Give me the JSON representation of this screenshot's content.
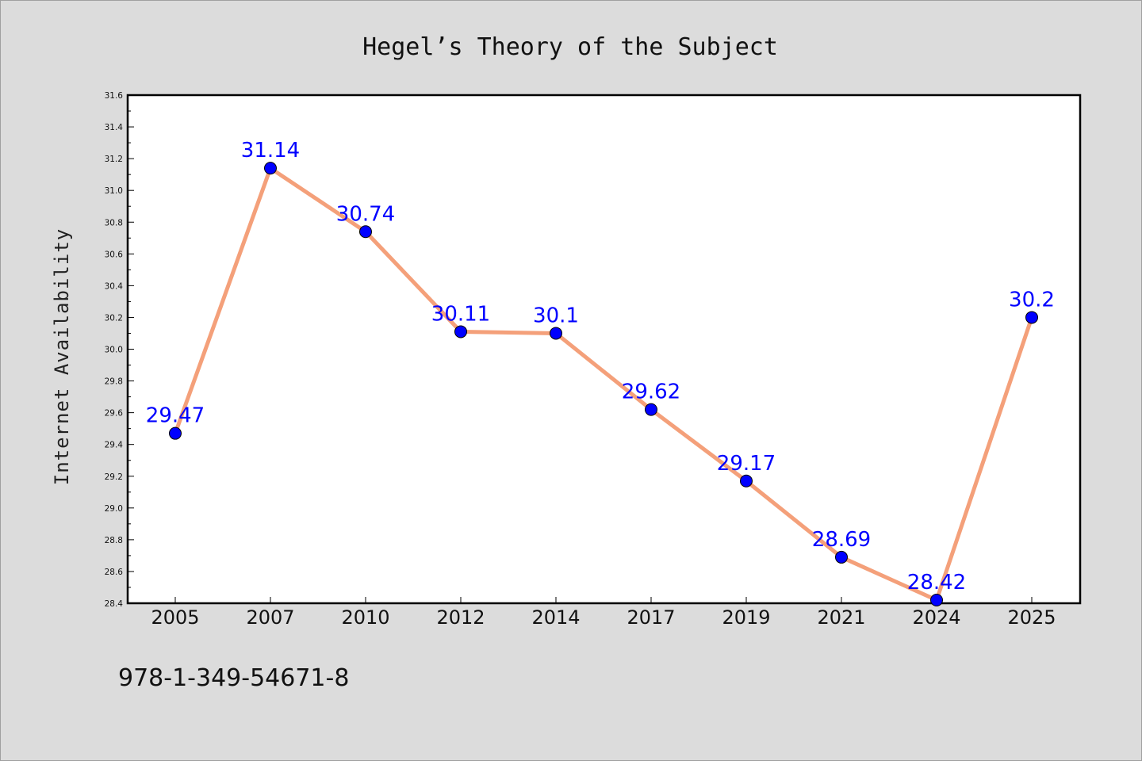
{
  "chart_data": {
    "type": "line",
    "title": "Hegel’s Theory of the Subject",
    "xlabel": "",
    "ylabel": "Internet Availability",
    "categories": [
      "2005",
      "2007",
      "2010",
      "2012",
      "2014",
      "2017",
      "2019",
      "2021",
      "2024",
      "2025"
    ],
    "series": [
      {
        "values": [
          29.47,
          31.14,
          30.74,
          30.11,
          30.1,
          29.62,
          29.17,
          28.69,
          28.42,
          30.2
        ],
        "labels": [
          "29.47",
          "31.14",
          "30.74",
          "30.11",
          "30.1",
          "29.62",
          "29.17",
          "28.69",
          "28.42",
          "30.2"
        ],
        "line_color": "#f4a07a",
        "marker_color": "#0000ff"
      }
    ],
    "ylim": [
      28.4,
      31.6
    ],
    "yticks": [
      "28.4",
      "28.6",
      "28.8",
      "29.0",
      "29.2",
      "29.4",
      "29.6",
      "29.8",
      "30.0",
      "30.2",
      "30.4",
      "30.6",
      "30.8",
      "31.0",
      "31.2",
      "31.4",
      "31.6"
    ],
    "grid": false,
    "legend": "none"
  },
  "footer": {
    "text": "978-1-349-54671-8"
  }
}
